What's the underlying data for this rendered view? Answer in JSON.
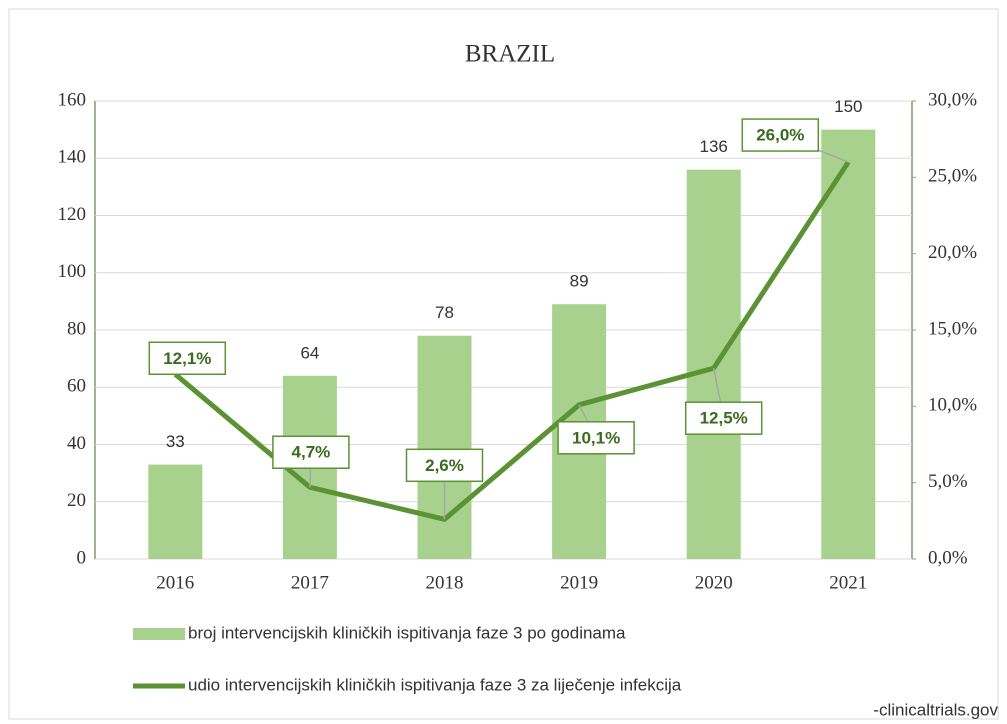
{
  "chart_data": {
    "type": "bar-line",
    "title": "BRAZIL",
    "categories": [
      "2016",
      "2017",
      "2018",
      "2019",
      "2020",
      "2021"
    ],
    "series": [
      {
        "name": "broj intervencijskih kliničkih ispitivanja faze 3 po godinama",
        "color": "#a9d18e",
        "type": "bar",
        "values": [
          33,
          64,
          78,
          89,
          136,
          150
        ]
      },
      {
        "name": "udio intervencijskih kliničkih ispitivanja faze 3 za liječenje infekcija",
        "color": "#5a9234",
        "type": "line",
        "axis": "y2",
        "values": [
          12.1,
          4.7,
          2.6,
          10.1,
          12.5,
          26.0
        ],
        "value_labels": [
          "12,1%",
          "4,7%",
          "2,6%",
          "10,1%",
          "12,5%",
          "26,0%"
        ]
      }
    ],
    "ylim": [
      0,
      160
    ],
    "yticks": [
      0,
      20,
      40,
      60,
      80,
      100,
      120,
      140,
      160
    ],
    "y2lim": [
      0,
      30
    ],
    "y2ticks": [
      {
        "value": 0,
        "label": "0,0%"
      },
      {
        "value": 5,
        "label": "5,0%"
      },
      {
        "value": 10,
        "label": "10,0%"
      },
      {
        "value": 15,
        "label": "15,0%"
      },
      {
        "value": 20,
        "label": "20,0%"
      },
      {
        "value": 25,
        "label": "25,0%"
      },
      {
        "value": 30,
        "label": "30,0%"
      }
    ],
    "source": "-clinicaltrials.gov"
  }
}
